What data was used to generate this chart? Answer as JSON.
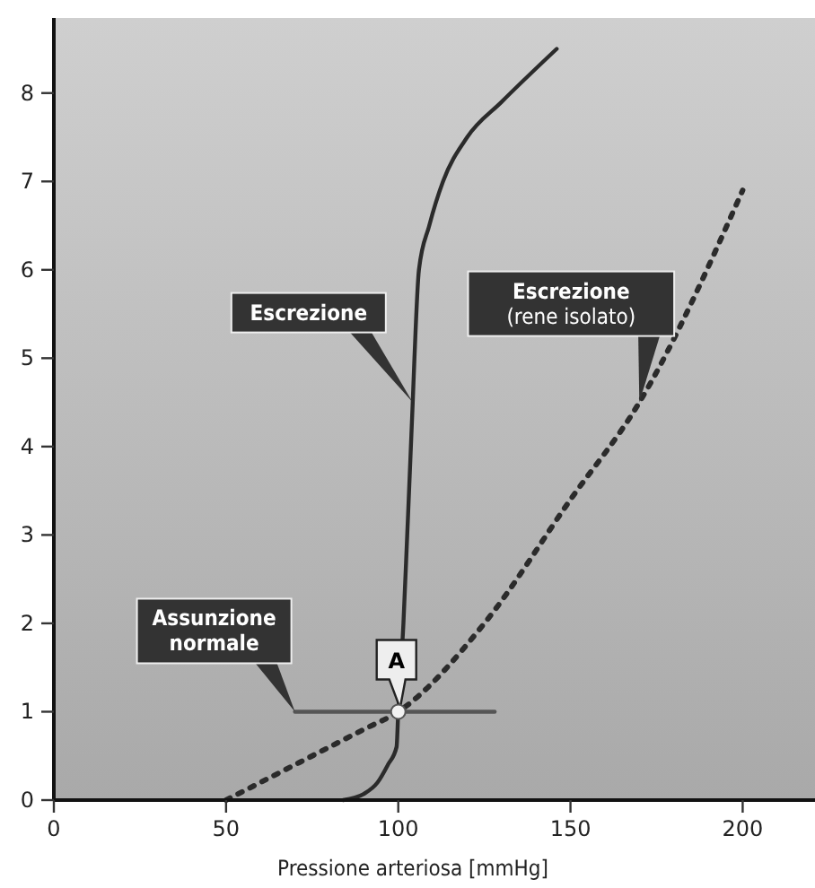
{
  "chart_data": {
    "type": "line",
    "xlabel": "Pressione arteriosa [mmHg]",
    "xlim": [
      0,
      221
    ],
    "xticks": [
      0,
      50,
      100,
      150,
      200
    ],
    "ylim": [
      0,
      8.85
    ],
    "yticks": [
      0,
      1,
      2,
      3,
      4,
      5,
      6,
      7,
      8
    ],
    "grid": false,
    "marker": "none",
    "series": [
      {
        "name": "Escrezione",
        "color": "#2b2b2b",
        "line_style": "solid",
        "x": [
          84,
          90,
          94,
          97,
          99.5,
          100,
          101.5,
          102.6,
          104.2,
          104.7,
          106,
          109,
          113,
          120,
          130,
          146
        ],
        "values": [
          0,
          0.07,
          0.2,
          0.4,
          0.6,
          1,
          2,
          3,
          4.5,
          5,
          6,
          6.5,
          7,
          7.5,
          7.9,
          8.5
        ]
      },
      {
        "name": "Escrezione (rene isolato)",
        "color": "#2b2b2b",
        "line_style": "dotted",
        "x": [
          50,
          60,
          75,
          90,
          100,
          125,
          150,
          170,
          200
        ],
        "values": [
          0,
          0.2,
          0.5,
          0.8,
          1,
          2,
          3.4,
          4.5,
          6.9
        ]
      },
      {
        "name": "Assunzione normale",
        "color": "#555555",
        "line_style": "solid",
        "x": [
          70,
          128
        ],
        "values": [
          1,
          1
        ]
      }
    ],
    "annotations": [
      {
        "text": "A",
        "x": 100,
        "y": 1
      }
    ]
  }
}
